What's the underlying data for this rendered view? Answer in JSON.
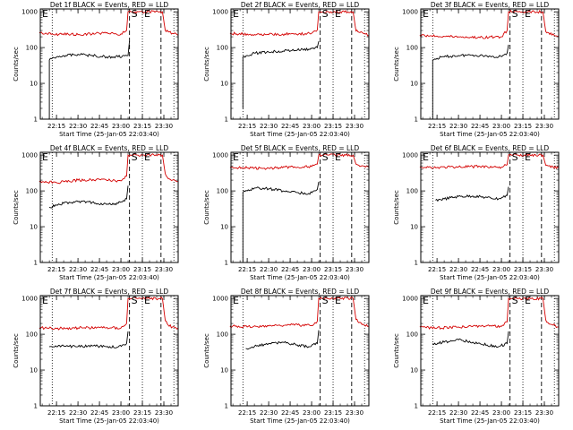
{
  "chart_data": [
    {
      "type": "line",
      "title": "Det 1f BLACK = Events, RED = LLD",
      "ylabel": "Counts/sec",
      "xlabel": "Start Time (25-Jan-05 22:03:40)",
      "x_tick_labels": [
        "22:15",
        "22:30",
        "22:45",
        "23:00",
        "23:15",
        "23:30"
      ],
      "y_tick_labels": [
        "1",
        "10",
        "100",
        "1000"
      ],
      "yscale": "log",
      "ylim": [
        1,
        1200
      ],
      "xlim": [
        "22:03:40",
        "23:40"
      ],
      "markers": [
        "E",
        "S",
        "E"
      ],
      "series": [
        {
          "color": "#d40000",
          "x": [
            "22:03",
            "22:12",
            "22:30",
            "22:45",
            "23:00",
            "23:04",
            "23:05",
            "23:07",
            "23:08",
            "23:10",
            "23:12",
            "23:20",
            "23:29",
            "23:31",
            "23:33",
            "23:36",
            "23:40"
          ],
          "y": [
            260,
            240,
            230,
            250,
            240,
            300,
            1000,
            1000,
            1000,
            1000,
            1000,
            1000,
            1000,
            300,
            280,
            250,
            220
          ]
        },
        {
          "color": "#000000",
          "x": [
            "22:10",
            "22:10",
            "22:12",
            "22:15",
            "22:20",
            "22:30",
            "22:40",
            "22:50",
            "22:58",
            "23:05",
            "23:06"
          ],
          "y": [
            1,
            45,
            50,
            55,
            60,
            65,
            60,
            55,
            55,
            60,
            150
          ]
        }
      ]
    },
    {
      "type": "line",
      "title": "Det 2f BLACK = Events, RED = LLD",
      "ylabel": "Counts/sec",
      "xlabel": "Start Time (25-Jan-05 22:03:40)",
      "x_tick_labels": [
        "22:15",
        "22:30",
        "22:45",
        "23:00",
        "23:15",
        "23:30"
      ],
      "y_tick_labels": [
        "1",
        "10",
        "100",
        "1000"
      ],
      "yscale": "log",
      "ylim": [
        1,
        1200
      ],
      "xlim": [
        "22:03:40",
        "23:40"
      ],
      "markers": [
        "E",
        "S",
        "E"
      ],
      "series": [
        {
          "color": "#d40000",
          "x": [
            "22:03",
            "22:15",
            "22:30",
            "22:45",
            "23:00",
            "23:04",
            "23:05",
            "23:08",
            "23:12",
            "23:20",
            "23:29",
            "23:31",
            "23:33",
            "23:36",
            "23:40"
          ],
          "y": [
            250,
            240,
            230,
            240,
            250,
            310,
            1000,
            1000,
            1000,
            1000,
            1000,
            290,
            270,
            250,
            220
          ]
        },
        {
          "color": "#000000",
          "x": [
            "22:12",
            "22:12",
            "22:15",
            "22:20",
            "22:30",
            "22:40",
            "22:50",
            "22:58",
            "23:04",
            "23:05"
          ],
          "y": [
            2,
            55,
            60,
            70,
            75,
            80,
            85,
            90,
            100,
            150
          ]
        }
      ]
    },
    {
      "type": "line",
      "title": "Det 3f BLACK = Events, RED = LLD",
      "ylabel": "Counts/sec",
      "xlabel": "Start Time (25-Jan-05 22:03:40)",
      "x_tick_labels": [
        "22:15",
        "22:30",
        "22:45",
        "23:00",
        "23:15",
        "23:30"
      ],
      "y_tick_labels": [
        "1",
        "10",
        "100",
        "1000"
      ],
      "yscale": "log",
      "ylim": [
        1,
        1200
      ],
      "xlim": [
        "22:03:40",
        "23:40"
      ],
      "markers": [
        "E",
        "S",
        "E"
      ],
      "series": [
        {
          "color": "#d40000",
          "x": [
            "22:03",
            "22:15",
            "22:30",
            "22:45",
            "23:00",
            "23:04",
            "23:05",
            "23:08",
            "23:12",
            "23:20",
            "23:29",
            "23:31",
            "23:33",
            "23:36",
            "23:40"
          ],
          "y": [
            220,
            210,
            200,
            190,
            200,
            300,
            1000,
            1000,
            1000,
            1000,
            1000,
            280,
            260,
            240,
            210
          ]
        },
        {
          "color": "#000000",
          "x": [
            "22:12",
            "22:12",
            "22:15",
            "22:20",
            "22:30",
            "22:40",
            "22:50",
            "22:58",
            "23:04",
            "23:05"
          ],
          "y": [
            1,
            45,
            50,
            55,
            60,
            62,
            58,
            55,
            70,
            120
          ]
        }
      ]
    },
    {
      "type": "line",
      "title": "Det 4f BLACK = Events, RED = LLD",
      "ylabel": "Counts/sec",
      "xlabel": "Start Time (25-Jan-05 22:03:40)",
      "x_tick_labels": [
        "22:15",
        "22:30",
        "22:45",
        "23:00",
        "23:15",
        "23:30"
      ],
      "y_tick_labels": [
        "1",
        "10",
        "100",
        "1000"
      ],
      "yscale": "log",
      "ylim": [
        1,
        1200
      ],
      "xlim": [
        "22:03:40",
        "23:40"
      ],
      "markers": [
        "E",
        "S",
        "E"
      ],
      "series": [
        {
          "color": "#d40000",
          "x": [
            "22:03",
            "22:15",
            "22:30",
            "22:45",
            "23:00",
            "23:04",
            "23:05",
            "23:08",
            "23:12",
            "23:20",
            "23:29",
            "23:31",
            "23:33",
            "23:36",
            "23:40"
          ],
          "y": [
            180,
            170,
            200,
            210,
            190,
            260,
            1000,
            1000,
            1000,
            1000,
            1000,
            300,
            220,
            200,
            180
          ]
        },
        {
          "color": "#000000",
          "x": [
            "22:10",
            "22:15",
            "22:20",
            "22:30",
            "22:40",
            "22:50",
            "22:58",
            "23:04",
            "23:05"
          ],
          "y": [
            35,
            40,
            45,
            50,
            48,
            42,
            45,
            60,
            140
          ]
        }
      ]
    },
    {
      "type": "line",
      "title": "Det 5f BLACK = Events, RED = LLD",
      "ylabel": "Counts/sec",
      "xlabel": "Start Time (25-Jan-05 22:03:40)",
      "x_tick_labels": [
        "22:15",
        "22:30",
        "22:45",
        "23:00",
        "23:15",
        "23:30"
      ],
      "y_tick_labels": [
        "1",
        "10",
        "100",
        "1000"
      ],
      "yscale": "log",
      "ylim": [
        1,
        1200
      ],
      "xlim": [
        "22:03:40",
        "23:40"
      ],
      "markers": [
        "E",
        "S",
        "E"
      ],
      "series": [
        {
          "color": "#d40000",
          "x": [
            "22:03",
            "22:15",
            "22:30",
            "22:45",
            "23:00",
            "23:04",
            "23:05",
            "23:08",
            "23:12",
            "23:20",
            "23:29",
            "23:31",
            "23:33",
            "23:36",
            "23:40"
          ],
          "y": [
            450,
            440,
            430,
            470,
            480,
            560,
            1000,
            1000,
            1000,
            1000,
            1000,
            560,
            520,
            500,
            460
          ]
        },
        {
          "color": "#000000",
          "x": [
            "22:12",
            "22:12",
            "22:15",
            "22:20",
            "22:30",
            "22:40",
            "22:50",
            "22:58",
            "23:04",
            "23:05"
          ],
          "y": [
            1,
            90,
            100,
            120,
            115,
            100,
            90,
            85,
            110,
            180
          ]
        }
      ]
    },
    {
      "type": "line",
      "title": "Det 6f BLACK = Events, RED = LLD",
      "ylabel": "Counts/sec",
      "xlabel": "Start Time (25-Jan-05 22:03:40)",
      "x_tick_labels": [
        "22:15",
        "22:30",
        "22:45",
        "23:00",
        "23:15",
        "23:30"
      ],
      "y_tick_labels": [
        "1",
        "10",
        "100",
        "1000"
      ],
      "yscale": "log",
      "ylim": [
        1,
        1200
      ],
      "xlim": [
        "22:03:40",
        "23:40"
      ],
      "markers": [
        "E",
        "S",
        "E"
      ],
      "series": [
        {
          "color": "#d40000",
          "x": [
            "22:03",
            "22:15",
            "22:30",
            "22:45",
            "23:00",
            "23:04",
            "23:05",
            "23:08",
            "23:12",
            "23:20",
            "23:29",
            "23:31",
            "23:33",
            "23:36",
            "23:40"
          ],
          "y": [
            470,
            450,
            470,
            480,
            460,
            540,
            1000,
            1000,
            1000,
            1000,
            1000,
            520,
            500,
            470,
            440
          ]
        },
        {
          "color": "#000000",
          "x": [
            "22:14",
            "22:20",
            "22:30",
            "22:40",
            "22:50",
            "22:58",
            "23:04",
            "23:05"
          ],
          "y": [
            55,
            60,
            70,
            72,
            65,
            60,
            75,
            130
          ]
        }
      ]
    },
    {
      "type": "line",
      "title": "Det 7f BLACK = Events, RED = LLD",
      "ylabel": "Counts/sec",
      "xlabel": "Start Time (25-Jan-05 22:03:40)",
      "x_tick_labels": [
        "22:15",
        "22:30",
        "22:45",
        "23:00",
        "23:15",
        "23:30"
      ],
      "y_tick_labels": [
        "1",
        "10",
        "100",
        "1000"
      ],
      "yscale": "log",
      "ylim": [
        1,
        1200
      ],
      "xlim": [
        "22:03:40",
        "23:40"
      ],
      "markers": [
        "E",
        "S",
        "E"
      ],
      "series": [
        {
          "color": "#d40000",
          "x": [
            "22:03",
            "22:15",
            "22:30",
            "22:45",
            "23:00",
            "23:04",
            "23:05",
            "23:08",
            "23:12",
            "23:20",
            "23:29",
            "23:31",
            "23:33",
            "23:36",
            "23:40"
          ],
          "y": [
            150,
            145,
            150,
            155,
            150,
            200,
            1000,
            1000,
            1000,
            1000,
            1000,
            240,
            180,
            160,
            150
          ]
        },
        {
          "color": "#000000",
          "x": [
            "22:10",
            "22:15",
            "22:20",
            "22:30",
            "22:40",
            "22:50",
            "22:58",
            "23:04",
            "23:05"
          ],
          "y": [
            45,
            45,
            47,
            45,
            47,
            45,
            44,
            55,
            120
          ]
        }
      ]
    },
    {
      "type": "line",
      "title": "Det 8f BLACK = Events, RED = LLD",
      "ylabel": "Counts/sec",
      "xlabel": "Start Time (25-Jan-05 22:03:40)",
      "x_tick_labels": [
        "22:15",
        "22:30",
        "22:45",
        "23:00",
        "23:15",
        "23:30"
      ],
      "y_tick_labels": [
        "1",
        "10",
        "100",
        "1000"
      ],
      "yscale": "log",
      "ylim": [
        1,
        1200
      ],
      "xlim": [
        "22:03:40",
        "23:40"
      ],
      "markers": [
        "E",
        "S",
        "E"
      ],
      "series": [
        {
          "color": "#d40000",
          "x": [
            "22:03",
            "22:15",
            "22:30",
            "22:45",
            "23:00",
            "23:04",
            "23:05",
            "23:08",
            "23:12",
            "23:20",
            "23:29",
            "23:31",
            "23:33",
            "23:36",
            "23:40"
          ],
          "y": [
            170,
            160,
            170,
            180,
            175,
            230,
            1000,
            1000,
            1000,
            1000,
            1000,
            260,
            210,
            190,
            170
          ]
        },
        {
          "color": "#000000",
          "x": [
            "22:14",
            "22:20",
            "22:30",
            "22:40",
            "22:50",
            "22:58",
            "23:04",
            "23:05"
          ],
          "y": [
            40,
            45,
            55,
            60,
            50,
            45,
            55,
            130
          ]
        }
      ]
    },
    {
      "type": "line",
      "title": "Det 9f BLACK = Events, RED = LLD",
      "ylabel": "Counts/sec",
      "xlabel": "Start Time (25-Jan-05 22:03:40)",
      "x_tick_labels": [
        "22:15",
        "22:30",
        "22:45",
        "23:00",
        "23:15",
        "23:30"
      ],
      "y_tick_labels": [
        "1",
        "10",
        "100",
        "1000"
      ],
      "yscale": "log",
      "ylim": [
        1,
        1200
      ],
      "xlim": [
        "22:03:40",
        "23:40"
      ],
      "markers": [
        "E",
        "S",
        "E"
      ],
      "series": [
        {
          "color": "#d40000",
          "x": [
            "22:03",
            "22:15",
            "22:30",
            "22:45",
            "23:00",
            "23:04",
            "23:05",
            "23:08",
            "23:12",
            "23:20",
            "23:29",
            "23:31",
            "23:33",
            "23:36",
            "23:40"
          ],
          "y": [
            160,
            150,
            160,
            170,
            165,
            220,
            1000,
            1000,
            1000,
            1000,
            1000,
            250,
            200,
            180,
            160
          ]
        },
        {
          "color": "#000000",
          "x": [
            "22:12",
            "22:20",
            "22:30",
            "22:40",
            "22:50",
            "22:58",
            "23:04",
            "23:05"
          ],
          "y": [
            55,
            60,
            70,
            60,
            50,
            45,
            55,
            120
          ]
        }
      ]
    }
  ]
}
